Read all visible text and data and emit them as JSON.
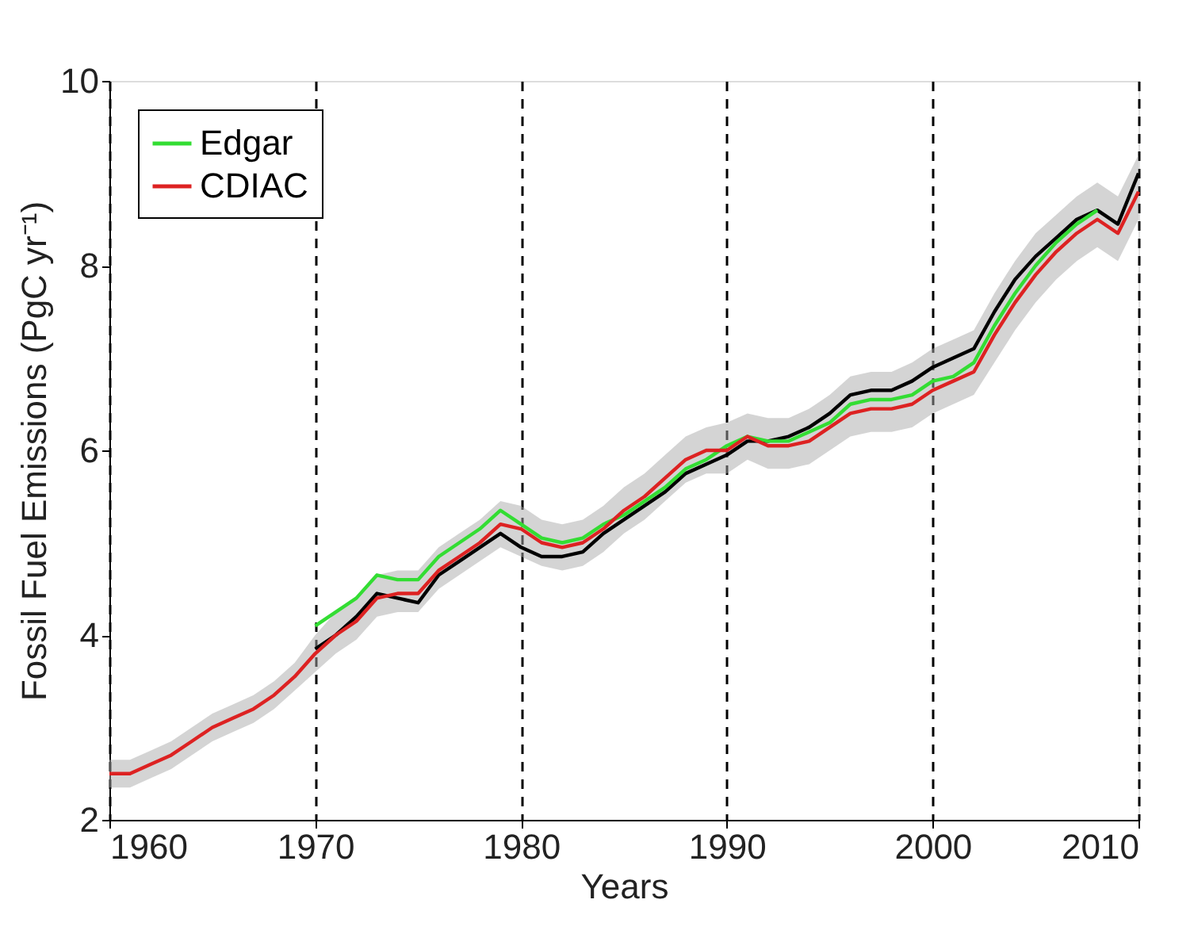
{
  "chart_data": {
    "type": "line",
    "xlabel": "Years",
    "ylabel": "Fossil Fuel Emissions (PgC yr⁻¹)",
    "xlim": [
      1960,
      2010
    ],
    "xticks": [
      1960,
      1970,
      1980,
      1990,
      2000,
      2010
    ],
    "ylim": [
      2,
      10
    ],
    "yticks": [
      2,
      4,
      6,
      8,
      10
    ],
    "grid": "x",
    "legend": "top left",
    "line_style": "solid",
    "series": [
      {
        "color": "#000000",
        "x": [
          1970,
          1971,
          1972,
          1973,
          1974,
          1975,
          1976,
          1977,
          1978,
          1979,
          1980,
          1981,
          1982,
          1983,
          1984,
          1985,
          1986,
          1987,
          1988,
          1989,
          1990,
          1991,
          1992,
          1993,
          1994,
          1995,
          1996,
          1997,
          1998,
          1999,
          2000,
          2001,
          2002,
          2003,
          2004,
          2005,
          2006,
          2007,
          2008,
          2009,
          2010
        ],
        "values": [
          3.85,
          4.0,
          4.2,
          4.45,
          4.4,
          4.35,
          4.65,
          4.8,
          4.95,
          5.1,
          4.95,
          4.85,
          4.85,
          4.9,
          5.1,
          5.25,
          5.4,
          5.55,
          5.75,
          5.85,
          5.95,
          6.1,
          6.1,
          6.15,
          6.25,
          6.4,
          6.6,
          6.65,
          6.65,
          6.75,
          6.9,
          7.0,
          7.1,
          7.5,
          7.85,
          8.1,
          8.3,
          8.5,
          8.6,
          8.45,
          9.0
        ]
      },
      {
        "name": "Edgar",
        "color": "#33dd33",
        "x": [
          1970,
          1971,
          1972,
          1973,
          1974,
          1975,
          1976,
          1977,
          1978,
          1979,
          1980,
          1981,
          1982,
          1983,
          1984,
          1985,
          1986,
          1987,
          1988,
          1989,
          1990,
          1991,
          1992,
          1993,
          1994,
          1995,
          1996,
          1997,
          1998,
          1999,
          2000,
          2001,
          2002,
          2003,
          2004,
          2005,
          2006,
          2007,
          2008
        ],
        "values": [
          4.1,
          4.25,
          4.4,
          4.65,
          4.6,
          4.6,
          4.85,
          5.0,
          5.15,
          5.35,
          5.2,
          5.05,
          5.0,
          5.05,
          5.2,
          5.3,
          5.45,
          5.6,
          5.8,
          5.9,
          6.05,
          6.15,
          6.1,
          6.1,
          6.2,
          6.3,
          6.5,
          6.55,
          6.55,
          6.6,
          6.75,
          6.8,
          6.95,
          7.35,
          7.7,
          8.0,
          8.25,
          8.45,
          8.6
        ]
      },
      {
        "name": "CDIAC",
        "color": "#dd2222",
        "x": [
          1960,
          1961,
          1962,
          1963,
          1964,
          1965,
          1966,
          1967,
          1968,
          1969,
          1970,
          1971,
          1972,
          1973,
          1974,
          1975,
          1976,
          1977,
          1978,
          1979,
          1980,
          1981,
          1982,
          1983,
          1984,
          1985,
          1986,
          1987,
          1988,
          1989,
          1990,
          1991,
          1992,
          1993,
          1994,
          1995,
          1996,
          1997,
          1998,
          1999,
          2000,
          2001,
          2002,
          2003,
          2004,
          2005,
          2006,
          2007,
          2008,
          2009,
          2010
        ],
        "values": [
          2.5,
          2.5,
          2.6,
          2.7,
          2.85,
          3.0,
          3.1,
          3.2,
          3.35,
          3.55,
          3.8,
          4.0,
          4.15,
          4.4,
          4.45,
          4.45,
          4.7,
          4.85,
          5.0,
          5.2,
          5.15,
          5.0,
          4.95,
          5.0,
          5.15,
          5.35,
          5.5,
          5.7,
          5.9,
          6.0,
          6.0,
          6.15,
          6.05,
          6.05,
          6.1,
          6.25,
          6.4,
          6.45,
          6.45,
          6.5,
          6.65,
          6.75,
          6.85,
          7.25,
          7.6,
          7.9,
          8.15,
          8.35,
          8.5,
          8.35,
          8.8
        ],
        "lower": [
          2.35,
          2.35,
          2.45,
          2.55,
          2.7,
          2.85,
          2.95,
          3.05,
          3.2,
          3.4,
          3.6,
          3.8,
          3.95,
          4.2,
          4.25,
          4.25,
          4.5,
          4.65,
          4.8,
          4.95,
          4.85,
          4.75,
          4.7,
          4.75,
          4.9,
          5.1,
          5.25,
          5.45,
          5.65,
          5.75,
          5.75,
          5.9,
          5.8,
          5.8,
          5.85,
          6.0,
          6.15,
          6.2,
          6.2,
          6.25,
          6.4,
          6.5,
          6.6,
          6.95,
          7.3,
          7.6,
          7.85,
          8.05,
          8.2,
          8.05,
          8.5
        ],
        "upper": [
          2.65,
          2.65,
          2.75,
          2.85,
          3.0,
          3.15,
          3.25,
          3.35,
          3.5,
          3.7,
          4.0,
          4.25,
          4.4,
          4.65,
          4.7,
          4.7,
          4.95,
          5.1,
          5.25,
          5.45,
          5.4,
          5.25,
          5.2,
          5.25,
          5.4,
          5.6,
          5.75,
          5.95,
          6.15,
          6.25,
          6.3,
          6.4,
          6.35,
          6.35,
          6.45,
          6.6,
          6.8,
          6.85,
          6.85,
          6.95,
          7.1,
          7.2,
          7.3,
          7.7,
          8.05,
          8.35,
          8.55,
          8.75,
          8.9,
          8.75,
          9.2
        ]
      }
    ]
  }
}
